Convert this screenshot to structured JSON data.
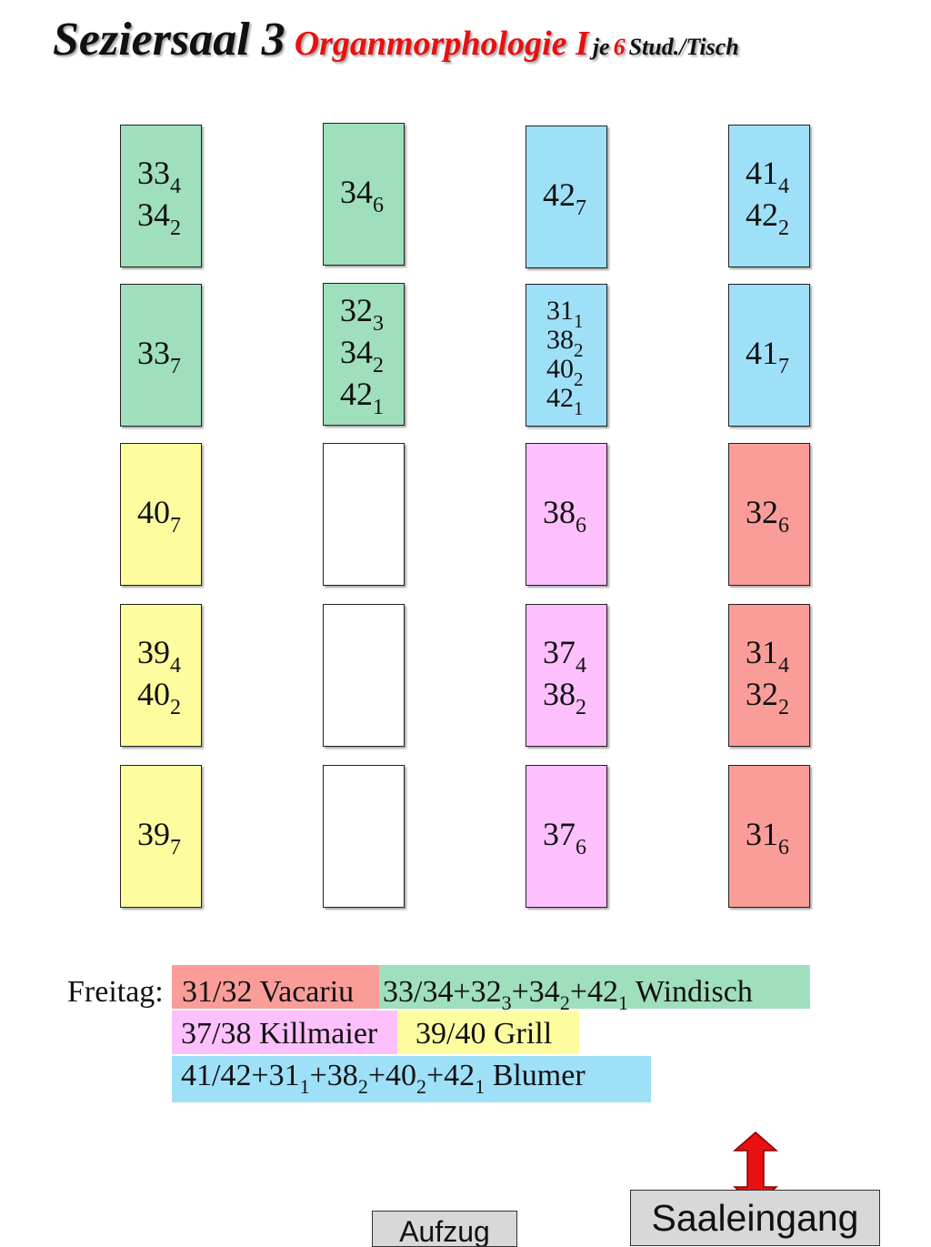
{
  "title": {
    "main": "Seziersaal 3",
    "sub": "Organmorphologie I",
    "je": "je",
    "count": "6",
    "stud": "Stud./Tisch"
  },
  "colors": {
    "green": "#9fdfbc",
    "blue": "#9ee0f8",
    "yellow": "#fdfc9e",
    "pink": "#fdc0fd",
    "red": "#fa9d99",
    "white": "#ffffff",
    "title_accent": "#e81010",
    "arrow": "#e81010"
  },
  "tables": {
    "r1c1": {
      "color": "green",
      "lines": [
        [
          "33",
          "4"
        ],
        [
          "34",
          "2"
        ]
      ]
    },
    "r1c2": {
      "color": "green",
      "lines": [
        [
          "34",
          "6"
        ]
      ]
    },
    "r1c3": {
      "color": "blue",
      "lines": [
        [
          "42",
          "7"
        ]
      ]
    },
    "r1c4": {
      "color": "blue",
      "lines": [
        [
          "41",
          "4"
        ],
        [
          "42",
          "2"
        ]
      ]
    },
    "r2c1": {
      "color": "green",
      "lines": [
        [
          "33",
          "7"
        ]
      ]
    },
    "r2c2": {
      "color": "green",
      "lines": [
        [
          "32",
          "3"
        ],
        [
          "34",
          "2"
        ],
        [
          "42",
          "1"
        ]
      ]
    },
    "r2c3": {
      "color": "blue",
      "lines": [
        [
          "31",
          "1"
        ],
        [
          "38",
          "2"
        ],
        [
          "40",
          "2"
        ],
        [
          "42",
          "1"
        ]
      ]
    },
    "r2c4": {
      "color": "blue",
      "lines": [
        [
          "41",
          "7"
        ]
      ]
    },
    "r3c1": {
      "color": "yellow",
      "lines": [
        [
          "40",
          "7"
        ]
      ]
    },
    "r3c2": {
      "color": "white",
      "lines": []
    },
    "r3c3": {
      "color": "pink",
      "lines": [
        [
          "38",
          "6"
        ]
      ]
    },
    "r3c4": {
      "color": "red",
      "lines": [
        [
          "32",
          "6"
        ]
      ]
    },
    "r4c1": {
      "color": "yellow",
      "lines": [
        [
          "39",
          "4"
        ],
        [
          "40",
          "2"
        ]
      ]
    },
    "r4c2": {
      "color": "white",
      "lines": []
    },
    "r4c3": {
      "color": "pink",
      "lines": [
        [
          "37",
          "4"
        ],
        [
          "38",
          "2"
        ]
      ]
    },
    "r4c4": {
      "color": "red",
      "lines": [
        [
          "31",
          "4"
        ],
        [
          "32",
          "2"
        ]
      ]
    },
    "r5c1": {
      "color": "yellow",
      "lines": [
        [
          "39",
          "7"
        ]
      ]
    },
    "r5c2": {
      "color": "white",
      "lines": []
    },
    "r5c3": {
      "color": "pink",
      "lines": [
        [
          "37",
          "6"
        ]
      ]
    },
    "r5c4": {
      "color": "red",
      "lines": [
        [
          "31",
          "6"
        ]
      ]
    }
  },
  "legend": {
    "label": "Freitag:",
    "vacariu": [
      [
        "31/32 Vacariu",
        ""
      ]
    ],
    "windisch": [
      [
        "33/34+32",
        "3"
      ],
      [
        "+34",
        "2"
      ],
      [
        "+42",
        "1"
      ],
      [
        " Windisch",
        ""
      ]
    ],
    "killmaier": [
      [
        "37/38 Killmaier",
        ""
      ]
    ],
    "grill": [
      [
        "39/40 Grill",
        ""
      ]
    ],
    "blumer": [
      [
        "41/42+31",
        "1"
      ],
      [
        "+38",
        "2"
      ],
      [
        "+40",
        "2"
      ],
      [
        "+42",
        "1"
      ],
      [
        " Blumer",
        ""
      ]
    ]
  },
  "buttons": {
    "aufzug": "Aufzug",
    "saaleingang": "Saaleingang"
  }
}
